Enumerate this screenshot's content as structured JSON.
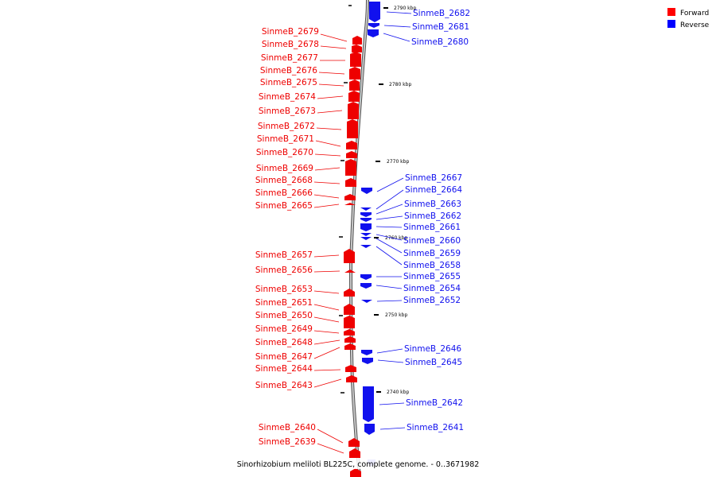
{
  "caption": "Sinorhizobium meliloti BL225C, complete genome. - 0..3671982",
  "legend": [
    {
      "label": "Forward",
      "color": "#ff0000"
    },
    {
      "label": "Reverse",
      "color": "#0000ff"
    }
  ],
  "colors": {
    "forward": "#ee0000",
    "reverse": "#1111ee",
    "backbone": "#888888"
  },
  "ticks": [
    "2790 kbp",
    "2780 kbp",
    "2770 kbp",
    "2760 kbp",
    "2750 kbp",
    "2740 kbp"
  ],
  "forward_genes": [
    "SinmeB_2679",
    "SinmeB_2678",
    "SinmeB_2677",
    "SinmeB_2676",
    "SinmeB_2675",
    "SinmeB_2674",
    "SinmeB_2673",
    "SinmeB_2672",
    "SinmeB_2671",
    "SinmeB_2670",
    "SinmeB_2669",
    "SinmeB_2668",
    "SinmeB_2666",
    "SinmeB_2665",
    "SinmeB_2657",
    "SinmeB_2656",
    "SinmeB_2653",
    "SinmeB_2651",
    "SinmeB_2650",
    "SinmeB_2649",
    "SinmeB_2648",
    "SinmeB_2647",
    "SinmeB_2644",
    "SinmeB_2643",
    "SinmeB_2640",
    "SinmeB_2639"
  ],
  "reverse_genes": [
    "SinmeB_2682",
    "SinmeB_2681",
    "SinmeB_2680",
    "SinmeB_2667",
    "SinmeB_2664",
    "SinmeB_2663",
    "SinmeB_2662",
    "SinmeB_2661",
    "SinmeB_2660",
    "SinmeB_2659",
    "SinmeB_2658",
    "SinmeB_2655",
    "SinmeB_2654",
    "SinmeB_2652",
    "SinmeB_2646",
    "SinmeB_2645",
    "SinmeB_2642",
    "SinmeB_2641"
  ]
}
